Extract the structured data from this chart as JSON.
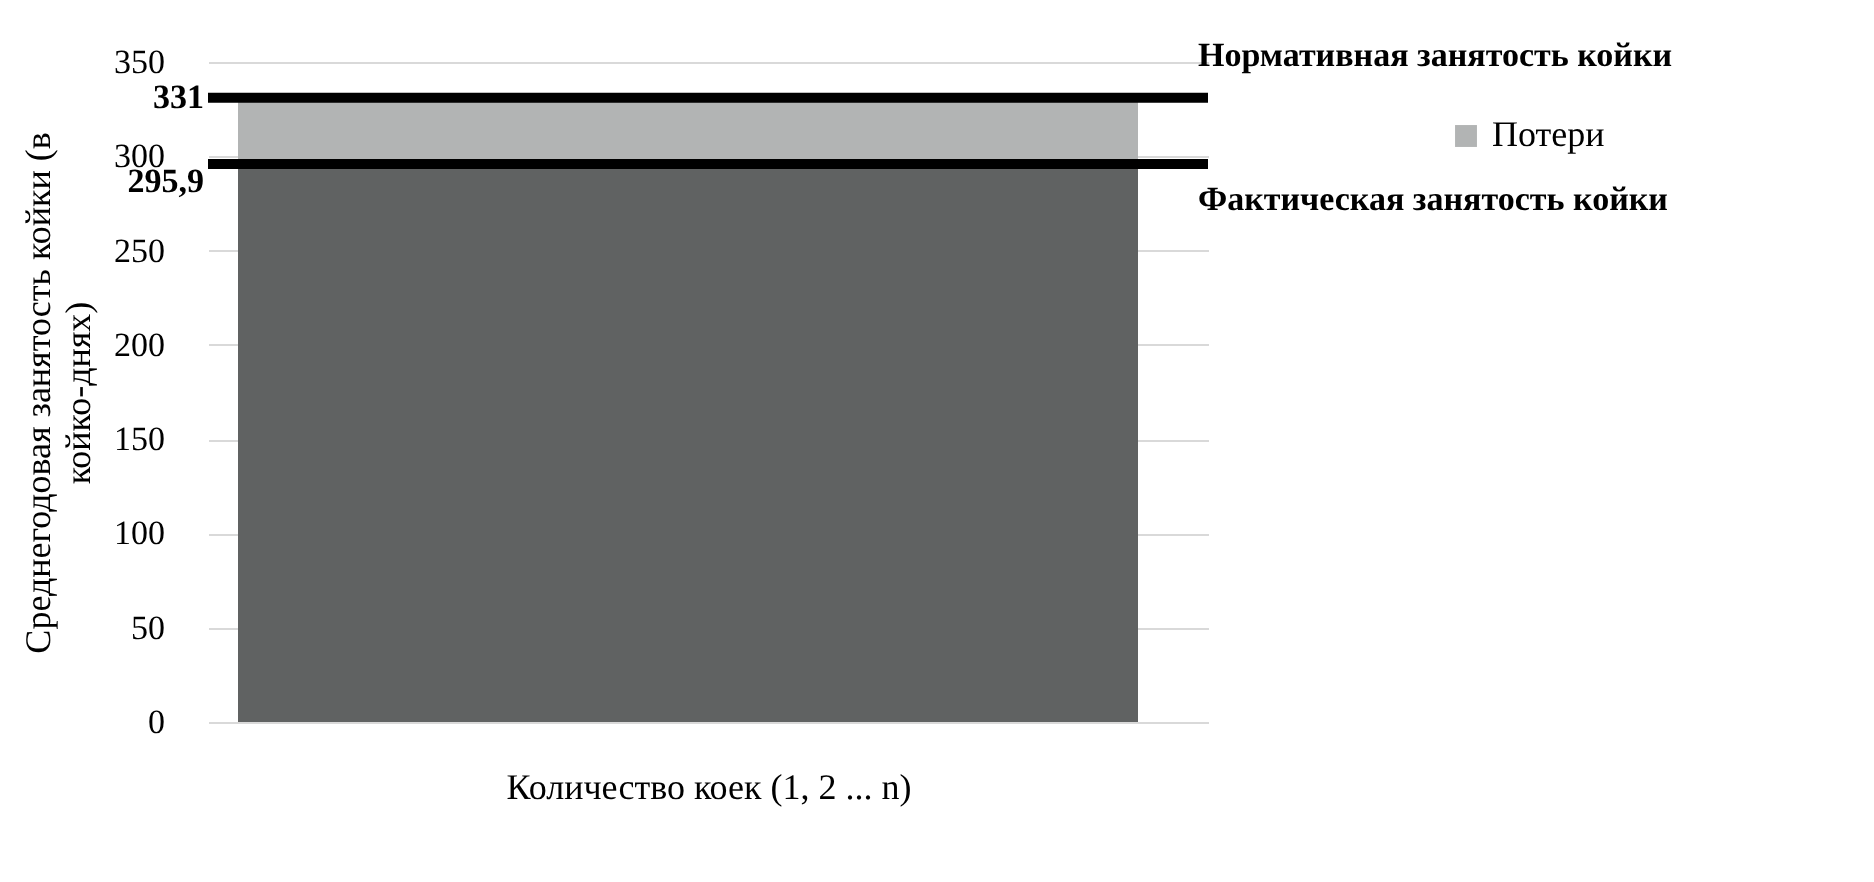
{
  "chart_data": {
    "type": "bar",
    "stacked": true,
    "categories": [
      null
    ],
    "series": [
      {
        "color": "#606262",
        "values": [
          295.9
        ]
      },
      {
        "name": "Потери",
        "color": "#b2b4b4",
        "values": [
          35.1
        ]
      }
    ],
    "ylim": [
      0,
      350
    ],
    "yticks": [
      0,
      50,
      100,
      150,
      200,
      250,
      300,
      350
    ],
    "grid": "y",
    "legend": "right",
    "xlabel": "Количество коек (1, 2 ... n)",
    "ylabel": "Среднегодовая занятость койки (в койко-днях)",
    "ref_lines": [
      {
        "axis": "y",
        "value": 331,
        "label": "Нормативная занятость койки",
        "color": "#000000"
      },
      {
        "axis": "y",
        "value": 295.9,
        "label": "Фактическая занятость койки",
        "color": "#000000"
      }
    ],
    "annotations": [
      "331",
      "295,9"
    ]
  }
}
